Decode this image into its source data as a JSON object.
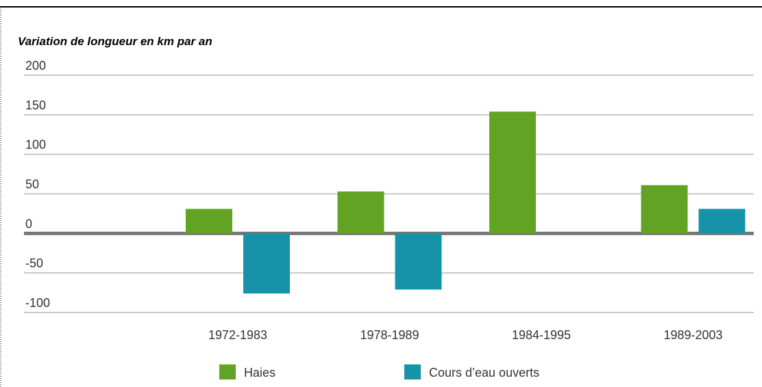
{
  "chart_data": {
    "type": "bar",
    "title": "Variation de longueur en km par an",
    "categories": [
      "1972-1983",
      "1978-1989",
      "1984-1995",
      "1989-2003"
    ],
    "series": [
      {
        "name": "Haies",
        "color": "#62a324",
        "values": [
          31,
          53,
          154,
          61
        ]
      },
      {
        "name": "Cours d’eau ouverts",
        "color": "#1693a8",
        "values": [
          -76,
          -71,
          null,
          31
        ]
      }
    ],
    "ylim": [
      -100,
      200
    ],
    "yticks": [
      -100,
      -50,
      0,
      50,
      100,
      150,
      200
    ],
    "grid": true,
    "legend": "bottom"
  }
}
